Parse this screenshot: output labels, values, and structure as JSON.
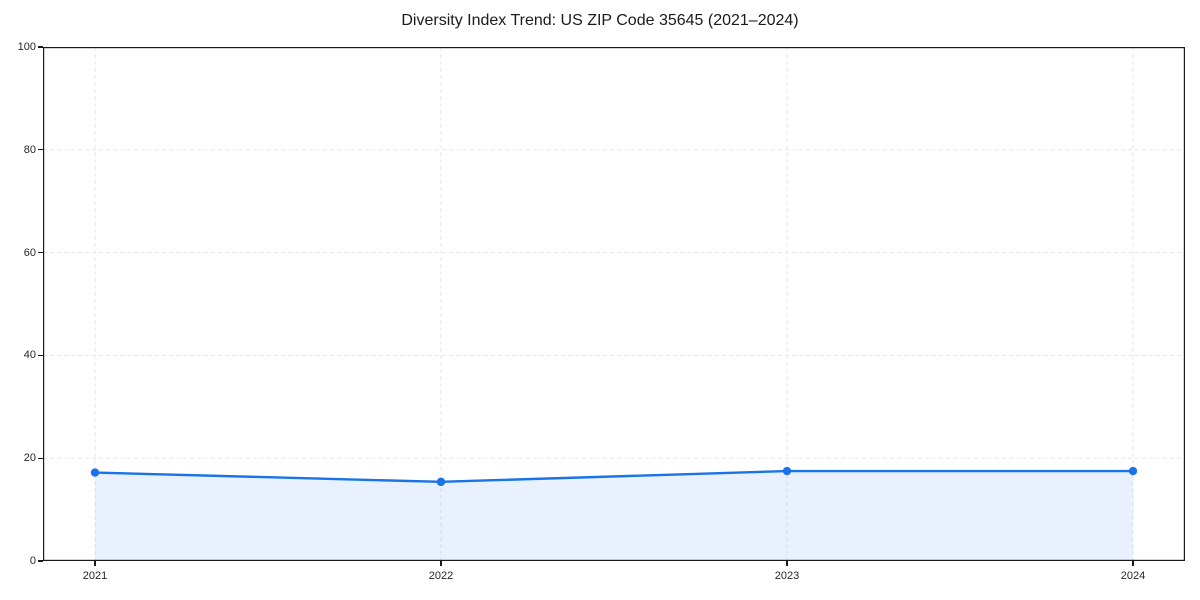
{
  "figure": {
    "background": "#ffffff"
  },
  "chart_data": {
    "type": "area",
    "title": "Diversity Index Trend: US ZIP Code 35645 (2021–2024)",
    "xlabel": "",
    "ylabel": "",
    "x": [
      2021,
      2022,
      2023,
      2024
    ],
    "series": [
      {
        "name": "Diversity Index",
        "values": [
          17.2,
          15.4,
          17.5,
          17.5
        ]
      }
    ],
    "ylim": [
      0,
      100
    ],
    "yticks": [
      0,
      20,
      40,
      60,
      80,
      100
    ],
    "xtick_labels": [
      "2021",
      "2022",
      "2023",
      "2024"
    ],
    "grid": true,
    "grid_style": "dashed",
    "legend_position": "none",
    "line_color": "#1a73e8",
    "marker_color": "#1a73e8",
    "fill_color": "rgba(26,115,232,0.10)",
    "grid_color": "#e7e7e7",
    "spine_color": "#1a1a1a",
    "tick_text_color": "#262626"
  }
}
